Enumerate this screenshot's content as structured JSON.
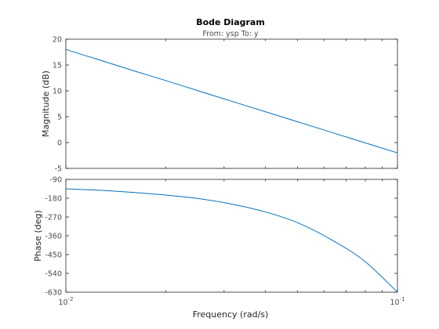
{
  "chart_data": {
    "type": "line",
    "title": "Bode Diagram",
    "subtitle": "From: ysp  To: y",
    "xlabel": "Frequency  (rad/s)",
    "xscale": "log",
    "xlim": [
      0.01,
      0.1
    ],
    "x_ticks": [
      {
        "base": "10",
        "exp": "-2"
      },
      {
        "base": "10",
        "exp": "-1"
      }
    ],
    "grid": false,
    "line_color": "#0072bd",
    "panels": [
      {
        "name": "magnitude",
        "ylabel": "Magnitude (dB)",
        "ylim": [
          -5,
          20
        ],
        "yticks": [
          "20",
          "15",
          "10",
          "5",
          "0",
          "-5"
        ],
        "x": [
          0.01,
          0.0126,
          0.0158,
          0.02,
          0.0251,
          0.0316,
          0.0398,
          0.0501,
          0.0631,
          0.0794,
          0.1
        ],
        "y": [
          18.0,
          16.0,
          14.0,
          12.0,
          10.0,
          8.0,
          6.0,
          4.0,
          2.0,
          0.0,
          -2.0
        ]
      },
      {
        "name": "phase",
        "ylabel": "Phase (deg)",
        "ylim": [
          -630,
          -90
        ],
        "yticks": [
          "-90",
          "-180",
          "-270",
          "-360",
          "-450",
          "-540",
          "-630"
        ],
        "x": [
          0.01,
          0.0126,
          0.0158,
          0.02,
          0.0251,
          0.0316,
          0.0398,
          0.0501,
          0.0631,
          0.0794,
          0.1
        ],
        "y": [
          -135,
          -142,
          -152,
          -165,
          -182,
          -208,
          -245,
          -298,
          -378,
          -480,
          -630
        ]
      }
    ]
  }
}
